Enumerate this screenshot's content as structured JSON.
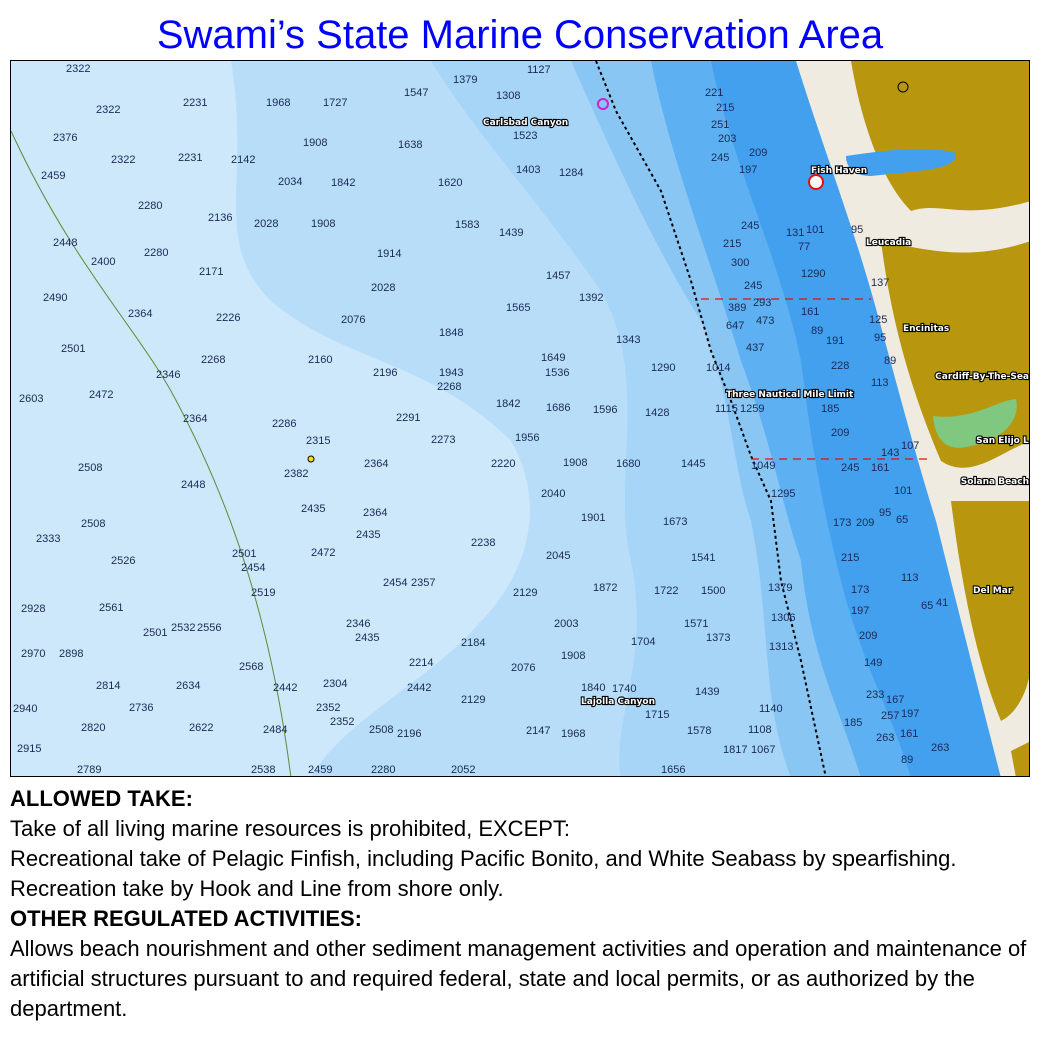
{
  "title": "Swami’s State Marine Conservation Area",
  "map": {
    "colors": {
      "deep": "#cde8fb",
      "mid1": "#b7ddf9",
      "mid2": "#9ccff6",
      "mid3": "#6fb7f2",
      "shallow": "#42a0ee",
      "land": "#b8970e",
      "beach": "#f0ebe0",
      "marsh": "#80c880",
      "boundary": "#e01010"
    },
    "places": [
      "Carlsbad Canyon",
      "Fish Haven",
      "Leucadia",
      "Encinitas",
      "Cardiff-By-The-Sea",
      "Three Nautical Mile Limit",
      "San Elijo L",
      "Solana Beach",
      "Del Mar",
      "Lajolla Canyon"
    ],
    "soundings": [
      "2322",
      "2322",
      "2231",
      "1968",
      "1727",
      "1547",
      "1379",
      "1308",
      "1127",
      "2376",
      "2322",
      "2231",
      "2142",
      "1908",
      "1638",
      "1523",
      "1403",
      "1284",
      "2459",
      "2280",
      "2136",
      "2034",
      "1842",
      "1620",
      "1439",
      "2448",
      "2400",
      "2280",
      "2171",
      "2028",
      "1908",
      "1914",
      "1583",
      "1457",
      "1392",
      "2490",
      "2364",
      "2226",
      "2076",
      "2028",
      "1848",
      "1565",
      "1343",
      "2501",
      "2346",
      "2268",
      "2160",
      "2196",
      "1943",
      "1649",
      "1536",
      "1290",
      "2603",
      "2472",
      "2364",
      "2286",
      "2291",
      "2268",
      "1842",
      "1686",
      "1596",
      "1428",
      "2508",
      "2315",
      "2273",
      "1956",
      "1908",
      "1680",
      "1445",
      "2448",
      "2382",
      "2364",
      "2220",
      "2040",
      "1901",
      "1673",
      "2333",
      "2508",
      "2454",
      "2435",
      "2364",
      "2238",
      "2045",
      "1541",
      "2352",
      "2526",
      "2501",
      "2472",
      "2435",
      "2454",
      "2357",
      "2129",
      "1872",
      "1722",
      "1500",
      "2928",
      "2561",
      "2532",
      "2519",
      "2346",
      "2435",
      "2003",
      "1571",
      "2970",
      "2898",
      "2556",
      "2501",
      "2568",
      "2214",
      "2184",
      "2076",
      "1908",
      "1704",
      "1373",
      "2814",
      "2634",
      "2442",
      "2304",
      "2442",
      "2129",
      "1840",
      "1740",
      "1439",
      "2940",
      "2736",
      "2820",
      "2622",
      "2484",
      "2352",
      "2508",
      "2196",
      "2147",
      "1968",
      "1715",
      "1578",
      "2915",
      "2789",
      "2538",
      "2459",
      "2280",
      "2052",
      "1656",
      "1817",
      "221",
      "215",
      "251",
      "203",
      "245",
      "209",
      "197",
      "245",
      "215",
      "300",
      "245",
      "293",
      "389",
      "473",
      "647",
      "437",
      "1014",
      "1115",
      "1259",
      "1049",
      "1295",
      "1379",
      "1306",
      "1313",
      "1140",
      "1108",
      "1067",
      "1290",
      "161",
      "89",
      "191",
      "228",
      "185",
      "209",
      "245",
      "161",
      "173",
      "209",
      "215",
      "173",
      "197",
      "149",
      "209",
      "233",
      "257",
      "263",
      "263",
      "185",
      "167",
      "197",
      "161",
      "89",
      "101",
      "131",
      "77",
      "95",
      "137",
      "125",
      "95",
      "89",
      "113",
      "143",
      "107",
      "95",
      "65",
      "101",
      "113",
      "65",
      "41"
    ]
  },
  "regulations": {
    "heading1": "ALLOWED TAKE:",
    "line1": "Take of all living marine resources is prohibited, EXCEPT:",
    "line2": "Recreational take of Pelagic Finfish, including Pacific Bonito, and White Seabass by spearfishing.",
    "line3": "Recreation take by Hook and Line from shore only.",
    "heading2": "OTHER REGULATED ACTIVITIES:",
    "line4": "Allows beach nourishment and other sediment management activities and operation and maintenance of artificial structures pursuant to and required federal, state and local permits, or as authorized by the department."
  }
}
